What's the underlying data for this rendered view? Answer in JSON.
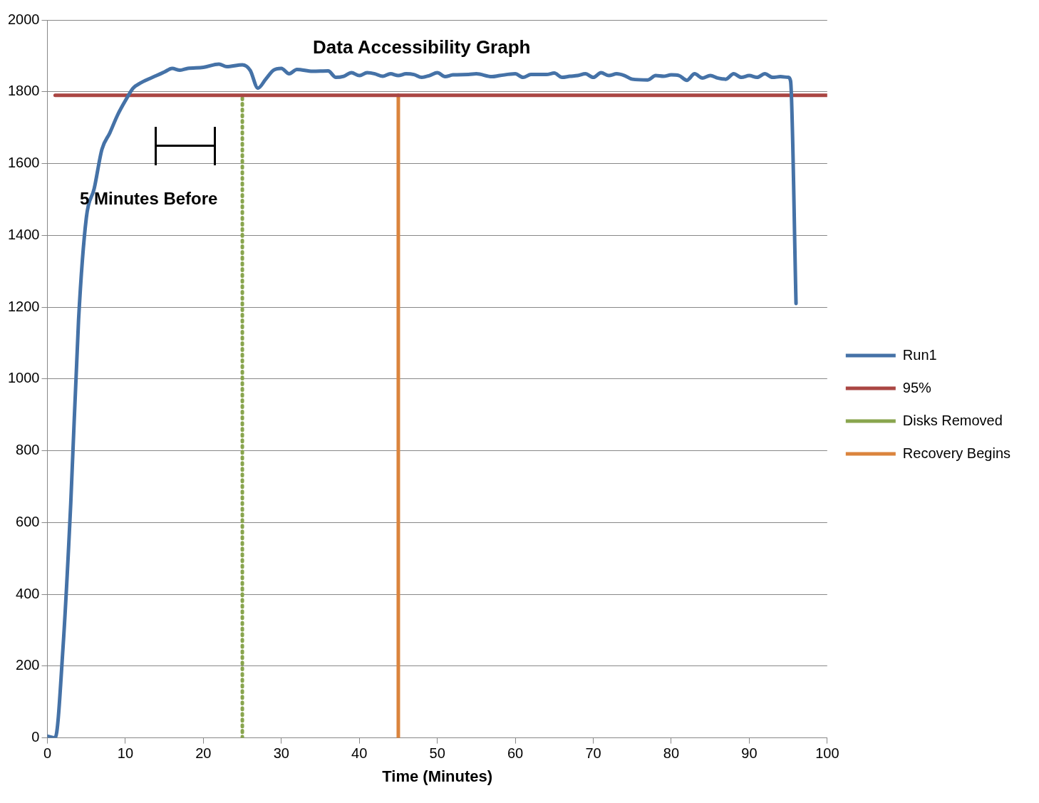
{
  "chart_data": {
    "type": "line",
    "title": "Data Accessibility Graph",
    "xlabel": "Time (Minutes)",
    "xlim": [
      0,
      100
    ],
    "xticks": [
      0,
      10,
      20,
      30,
      40,
      50,
      60,
      70,
      80,
      90,
      100
    ],
    "ylim": [
      0,
      2000
    ],
    "yticks": [
      0,
      200,
      400,
      600,
      800,
      1000,
      1200,
      1400,
      1600,
      1800,
      2000
    ],
    "grid": "y",
    "legend": "right",
    "marker": "none",
    "annotations": [
      "5 Minutes Before"
    ],
    "series": [
      {
        "name": "Run1",
        "color": "#4572a7",
        "line_style": "solid",
        "x": [
          0,
          1,
          2,
          3,
          4,
          5,
          6,
          7,
          8,
          9,
          10,
          11,
          12,
          14,
          15,
          16,
          17,
          18,
          20,
          22,
          23,
          25,
          26,
          27,
          28,
          29,
          30,
          31,
          32,
          34,
          36,
          37,
          38,
          39,
          40,
          41,
          42,
          43,
          44,
          45,
          46,
          47,
          48,
          49,
          50,
          51,
          52,
          54,
          55,
          57,
          58,
          60,
          61,
          62,
          64,
          65,
          66,
          67,
          68,
          69,
          70,
          71,
          72,
          73,
          74,
          75,
          77,
          78,
          79,
          80,
          81,
          82,
          83,
          84,
          85,
          86,
          87,
          88,
          89,
          90,
          91,
          92,
          93,
          94,
          95,
          95.3,
          96
        ],
        "values": [
          5,
          0,
          250,
          655,
          1165,
          1450,
          1530,
          1640,
          1685,
          1735,
          1775,
          1810,
          1825,
          1845,
          1855,
          1865,
          1860,
          1865,
          1868,
          1877,
          1870,
          1875,
          1860,
          1810,
          1835,
          1860,
          1865,
          1850,
          1862,
          1857,
          1858,
          1840,
          1843,
          1853,
          1845,
          1853,
          1850,
          1843,
          1850,
          1845,
          1850,
          1848,
          1840,
          1845,
          1853,
          1842,
          1847,
          1848,
          1850,
          1842,
          1845,
          1850,
          1840,
          1848,
          1848,
          1852,
          1840,
          1843,
          1845,
          1850,
          1840,
          1853,
          1845,
          1850,
          1845,
          1835,
          1833,
          1845,
          1843,
          1847,
          1845,
          1832,
          1850,
          1838,
          1845,
          1838,
          1835,
          1850,
          1840,
          1845,
          1840,
          1850,
          1840,
          1842,
          1840,
          1830,
          1210
        ]
      },
      {
        "name": "95%",
        "color": "#aa4643",
        "line_style": "solid",
        "x": [
          1,
          100
        ],
        "values": [
          1790,
          1790
        ]
      },
      {
        "name": "Disks Removed",
        "color": "#89a54e",
        "line_style": "dotted",
        "x": [
          25,
          25
        ],
        "values": [
          0,
          1790
        ]
      },
      {
        "name": "Recovery Begins",
        "color": "#db843d",
        "line_style": "solid",
        "x": [
          45,
          45
        ],
        "values": [
          0,
          1790
        ]
      }
    ]
  }
}
